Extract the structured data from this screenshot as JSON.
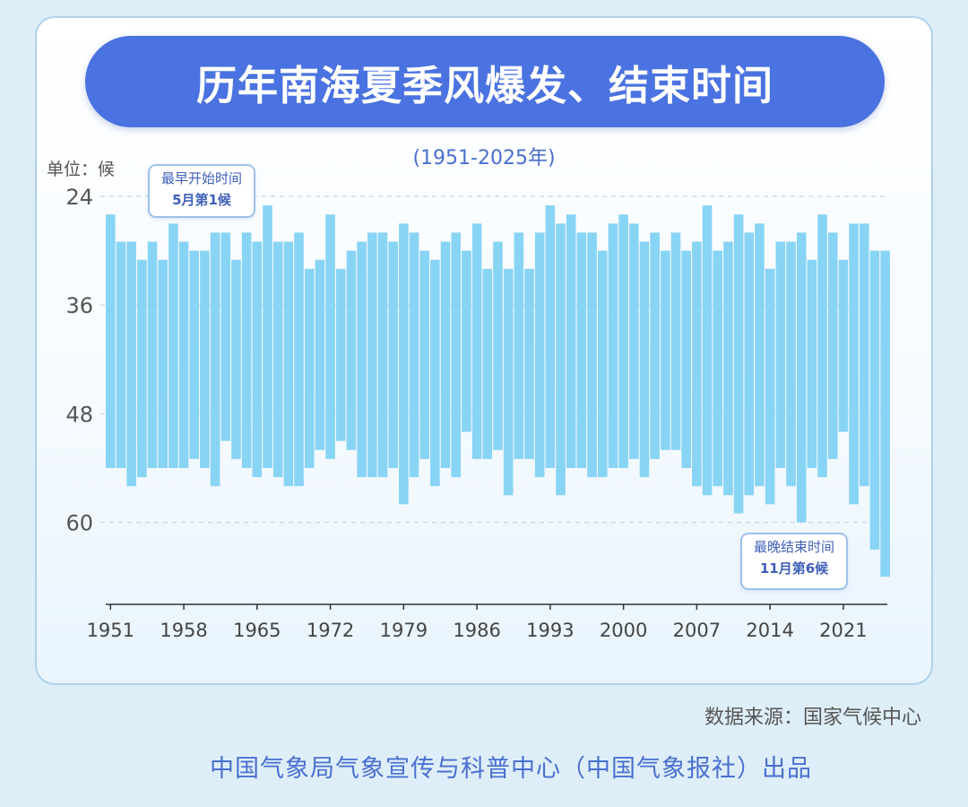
{
  "header": {
    "title": "历年南海夏季风爆发、结束时间",
    "subtitle": "(1951-2025年)",
    "unit": "单位：候"
  },
  "annotations": {
    "earliest_start_line1": "最早开始时间",
    "earliest_start_line2": "5月第1候",
    "latest_end_line1": "最晚结束时间",
    "latest_end_line2": "11月第6候"
  },
  "footer": {
    "source": "数据来源：国家气候中心",
    "producer": "中国气象局气象宣传与科普中心（中国气象报社）出品"
  },
  "colors": {
    "bar": "#88d4f5",
    "title_bg": "#4a72e0",
    "accent_text": "#4a6fd0",
    "grid": "#cfdbe6"
  },
  "chart_data": {
    "type": "bar",
    "subtype": "floating-range",
    "title": "历年南海夏季风爆发、结束时间",
    "subtitle": "(1951-2025年)",
    "ylabel": "单位：候",
    "ylim": [
      24,
      33.5,
      62.5
    ],
    "y_inverted": true,
    "y_ticks": [
      24,
      36,
      48,
      60
    ],
    "x_ticks": [
      "1951",
      "1958",
      "1965",
      "1972",
      "1979",
      "1986",
      "1993",
      "2000",
      "2007",
      "2014",
      "2021"
    ],
    "grid": "horizontal-dashed",
    "x": [
      1951,
      1952,
      1953,
      1954,
      1955,
      1956,
      1957,
      1958,
      1959,
      1960,
      1961,
      1962,
      1963,
      1964,
      1965,
      1966,
      1967,
      1968,
      1969,
      1970,
      1971,
      1972,
      1973,
      1974,
      1975,
      1976,
      1977,
      1978,
      1979,
      1980,
      1981,
      1982,
      1983,
      1984,
      1985,
      1986,
      1987,
      1988,
      1989,
      1990,
      1991,
      1992,
      1993,
      1994,
      1995,
      1996,
      1997,
      1998,
      1999,
      2000,
      2001,
      2002,
      2003,
      2004,
      2005,
      2006,
      2007,
      2008,
      2009,
      2010,
      2011,
      2012,
      2013,
      2014,
      2015,
      2016,
      2017,
      2018,
      2019,
      2020,
      2021,
      2022,
      2023,
      2024,
      2025
    ],
    "series": [
      {
        "name": "爆发",
        "values": [
          26,
          29,
          29,
          31,
          29,
          31,
          27,
          29,
          30,
          30,
          28,
          28,
          31,
          28,
          29,
          25,
          29,
          29,
          28,
          32,
          31,
          26,
          32,
          30,
          29,
          28,
          28,
          29,
          27,
          28,
          30,
          31,
          29,
          28,
          30,
          27,
          32,
          29,
          32,
          28,
          32,
          28,
          25,
          27,
          26,
          28,
          28,
          30,
          27,
          26,
          27,
          29,
          28,
          30,
          28,
          30,
          29,
          25,
          30,
          29,
          26,
          28,
          27,
          32,
          29,
          29,
          28,
          31,
          26,
          28,
          31,
          27,
          27,
          30,
          30
        ]
      },
      {
        "name": "结束",
        "values": [
          54,
          54,
          56,
          55,
          54,
          54,
          54,
          54,
          53,
          54,
          56,
          51,
          53,
          54,
          55,
          54,
          55,
          56,
          56,
          54,
          52,
          53,
          51,
          52,
          55,
          55,
          55,
          54,
          58,
          55,
          53,
          56,
          54,
          55,
          50,
          53,
          53,
          52,
          57,
          53,
          53,
          55,
          54,
          57,
          54,
          54,
          55,
          55,
          54,
          54,
          53,
          55,
          53,
          52,
          52,
          54,
          56,
          57,
          56,
          57,
          59,
          57,
          56,
          58,
          54,
          56,
          60,
          54,
          55,
          53,
          50,
          58,
          56,
          63,
          66
        ]
      }
    ]
  }
}
